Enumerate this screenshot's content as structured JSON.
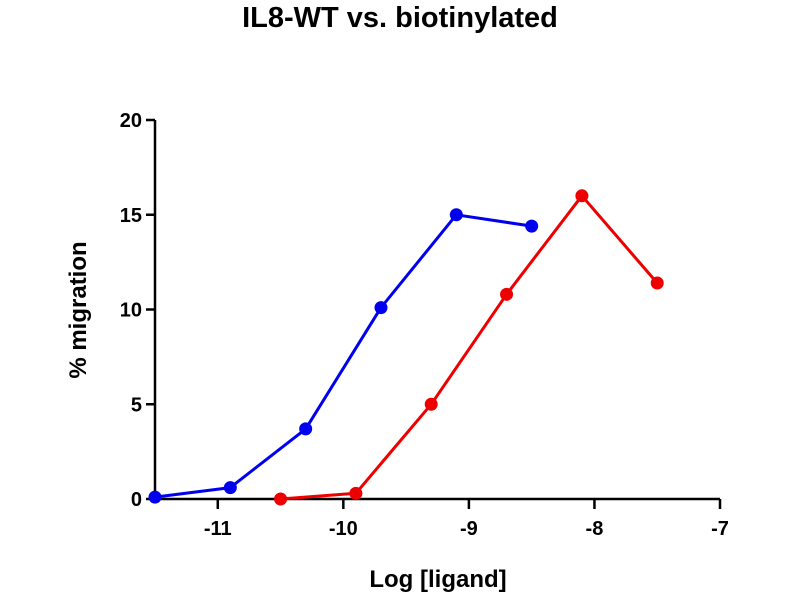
{
  "chart_data": {
    "type": "line",
    "title": "IL8-WT vs. biotinylated",
    "xlabel": "Log [ligand]",
    "ylabel": "% migration",
    "xlim": [
      -11.5,
      -7
    ],
    "ylim": [
      0,
      20
    ],
    "x_ticks": [
      -11,
      -10,
      -9,
      -8,
      -7
    ],
    "x_tick_labels": [
      "-11",
      "-10",
      "-9",
      "-8",
      "-7"
    ],
    "y_ticks": [
      0,
      5,
      10,
      15,
      20
    ],
    "y_tick_labels": [
      "0",
      "5",
      "10",
      "15",
      "20"
    ],
    "grid": false,
    "legend": "none",
    "series": [
      {
        "name": "IL8-WT",
        "color": "#0000ee",
        "x": [
          -11.5,
          -10.9,
          -10.3,
          -9.7,
          -9.1,
          -8.5
        ],
        "y": [
          0.1,
          0.6,
          3.7,
          10.1,
          15.0,
          14.4
        ]
      },
      {
        "name": "biotinylated",
        "color": "#ee0000",
        "x": [
          -10.5,
          -9.9,
          -9.3,
          -8.7,
          -8.1,
          -7.5
        ],
        "y": [
          0.0,
          0.3,
          5.0,
          10.8,
          16.0,
          11.4
        ]
      }
    ]
  }
}
